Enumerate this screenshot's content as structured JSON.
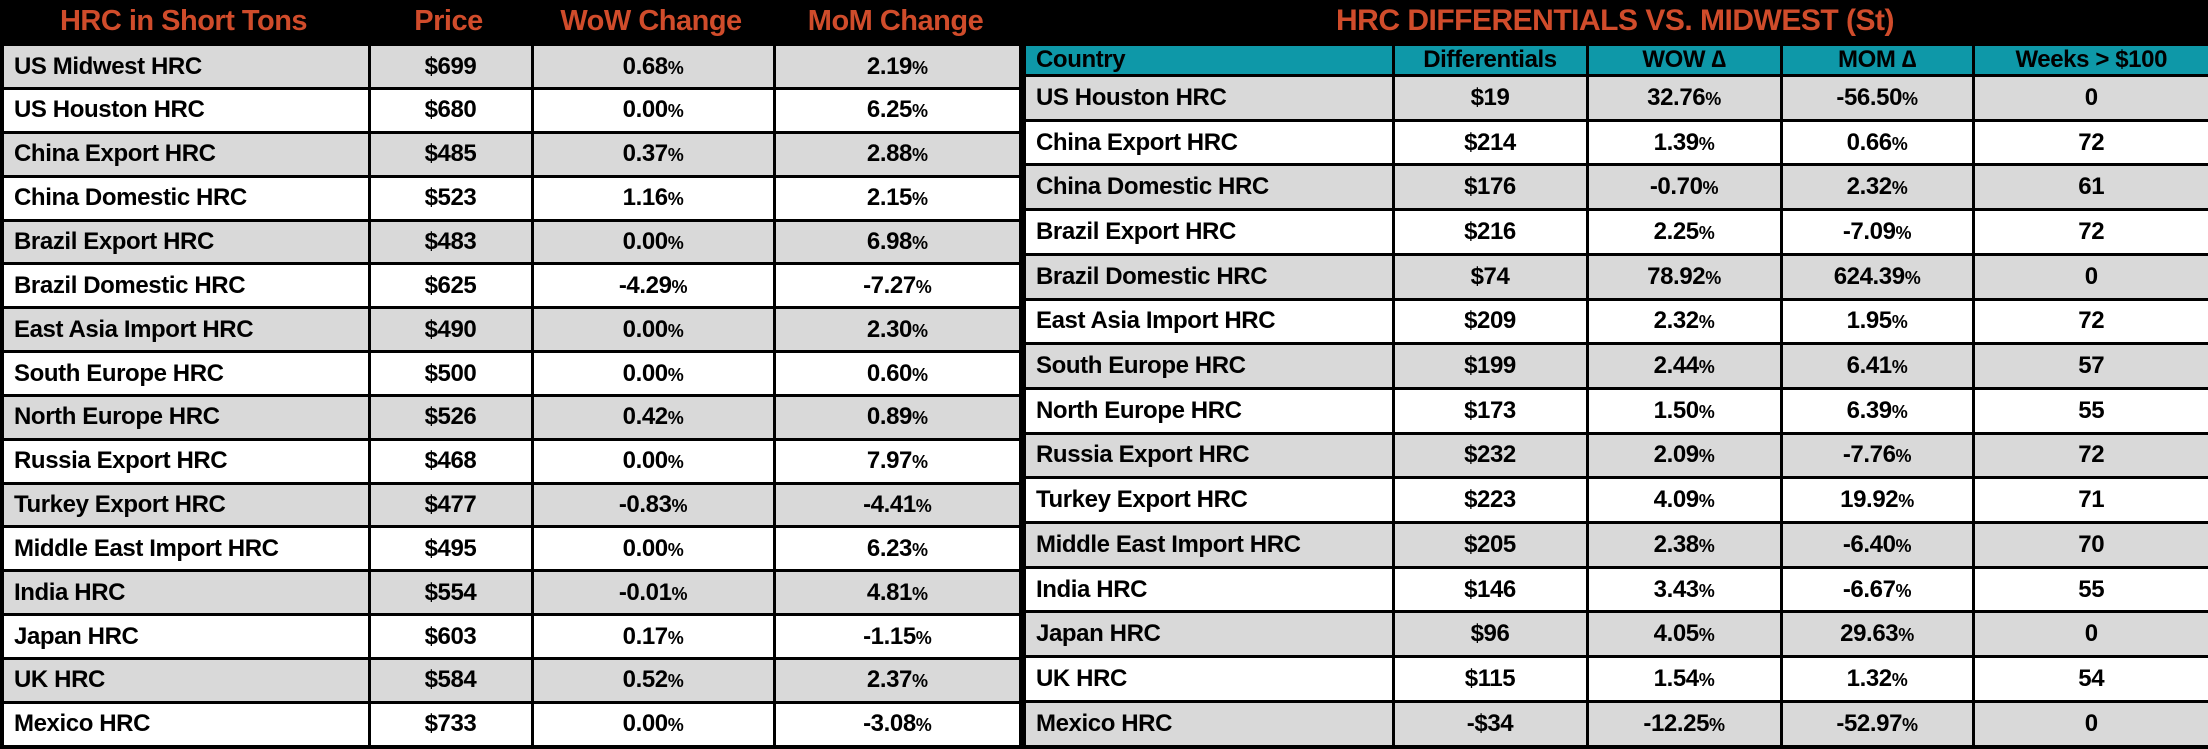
{
  "colors": {
    "background": "#000000",
    "title_text": "#D04C2B",
    "header_teal": "#0E98A8",
    "row_gray": "#D9D9D9",
    "row_white": "#FFFFFF",
    "cell_text": "#000000",
    "border": "#000000"
  },
  "chart_data": [
    {
      "type": "table",
      "title": "HRC in Short Tons",
      "headers": [
        "HRC in Short Tons",
        "Price",
        "WoW Change",
        "MoM Change"
      ],
      "rows": [
        {
          "name": "US Midwest HRC",
          "price": "$699",
          "wow": "0.68%",
          "mom": "2.19%"
        },
        {
          "name": "US Houston HRC",
          "price": "$680",
          "wow": "0.00%",
          "mom": "6.25%"
        },
        {
          "name": "China Export HRC",
          "price": "$485",
          "wow": "0.37%",
          "mom": "2.88%"
        },
        {
          "name": "China Domestic HRC",
          "price": "$523",
          "wow": "1.16%",
          "mom": "2.15%"
        },
        {
          "name": "Brazil Export HRC",
          "price": "$483",
          "wow": "0.00%",
          "mom": "6.98%"
        },
        {
          "name": "Brazil Domestic HRC",
          "price": "$625",
          "wow": "-4.29%",
          "mom": "-7.27%"
        },
        {
          "name": "East Asia Import HRC",
          "price": "$490",
          "wow": "0.00%",
          "mom": "2.30%"
        },
        {
          "name": "South Europe HRC",
          "price": "$500",
          "wow": "0.00%",
          "mom": "0.60%"
        },
        {
          "name": "North Europe HRC",
          "price": "$526",
          "wow": "0.42%",
          "mom": "0.89%"
        },
        {
          "name": "Russia Export HRC",
          "price": "$468",
          "wow": "0.00%",
          "mom": "7.97%"
        },
        {
          "name": "Turkey Export HRC",
          "price": "$477",
          "wow": "-0.83%",
          "mom": "-4.41%"
        },
        {
          "name": "Middle East Import HRC",
          "price": "$495",
          "wow": "0.00%",
          "mom": "6.23%"
        },
        {
          "name": "India HRC",
          "price": "$554",
          "wow": "-0.01%",
          "mom": "4.81%"
        },
        {
          "name": "Japan HRC",
          "price": "$603",
          "wow": "0.17%",
          "mom": "-1.15%"
        },
        {
          "name": "UK HRC",
          "price": "$584",
          "wow": "0.52%",
          "mom": "2.37%"
        },
        {
          "name": "Mexico HRC",
          "price": "$733",
          "wow": "0.00%",
          "mom": "-3.08%"
        }
      ]
    },
    {
      "type": "table",
      "title": "HRC DIFFERENTIALS VS. MIDWEST (St)",
      "headers": [
        "Country",
        "Differentials",
        "WOW ∆",
        "MOM ∆",
        "Weeks > $100"
      ],
      "rows": [
        {
          "country": "US Houston HRC",
          "differential": "$19",
          "wow": "32.76%",
          "mom": "-56.50%",
          "weeks": "0"
        },
        {
          "country": "China Export HRC",
          "differential": "$214",
          "wow": "1.39%",
          "mom": "0.66%",
          "weeks": "72"
        },
        {
          "country": "China Domestic HRC",
          "differential": "$176",
          "wow": "-0.70%",
          "mom": "2.32%",
          "weeks": "61"
        },
        {
          "country": "Brazil Export HRC",
          "differential": "$216",
          "wow": "2.25%",
          "mom": "-7.09%",
          "weeks": "72"
        },
        {
          "country": "Brazil Domestic HRC",
          "differential": "$74",
          "wow": "78.92%",
          "mom": "624.39%",
          "weeks": "0"
        },
        {
          "country": "East Asia Import HRC",
          "differential": "$209",
          "wow": "2.32%",
          "mom": "1.95%",
          "weeks": "72"
        },
        {
          "country": "South Europe HRC",
          "differential": "$199",
          "wow": "2.44%",
          "mom": "6.41%",
          "weeks": "57"
        },
        {
          "country": "North Europe HRC",
          "differential": "$173",
          "wow": "1.50%",
          "mom": "6.39%",
          "weeks": "55"
        },
        {
          "country": "Russia Export HRC",
          "differential": "$232",
          "wow": "2.09%",
          "mom": "-7.76%",
          "weeks": "72"
        },
        {
          "country": "Turkey Export HRC",
          "differential": "$223",
          "wow": "4.09%",
          "mom": "19.92%",
          "weeks": "71"
        },
        {
          "country": "Middle East Import HRC",
          "differential": "$205",
          "wow": "2.38%",
          "mom": "-6.40%",
          "weeks": "70"
        },
        {
          "country": "India HRC",
          "differential": "$146",
          "wow": "3.43%",
          "mom": "-6.67%",
          "weeks": "55"
        },
        {
          "country": "Japan HRC",
          "differential": "$96",
          "wow": "4.05%",
          "mom": "29.63%",
          "weeks": "0"
        },
        {
          "country": "UK HRC",
          "differential": "$115",
          "wow": "1.54%",
          "mom": "1.32%",
          "weeks": "54"
        },
        {
          "country": "Mexico HRC",
          "differential": "-$34",
          "wow": "-12.25%",
          "mom": "-52.97%",
          "weeks": "0"
        }
      ]
    }
  ]
}
